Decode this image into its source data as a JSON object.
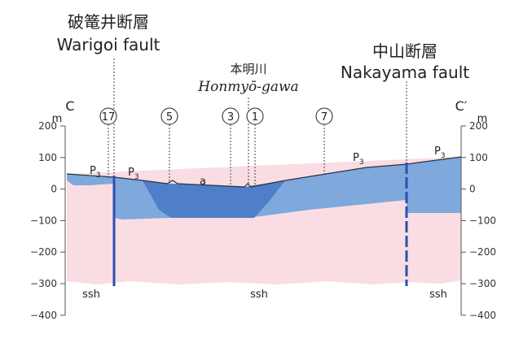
{
  "section": {
    "start_label": "C",
    "end_label": "C′",
    "unit": "m",
    "ticks": [
      "200",
      "100",
      "0",
      "−100",
      "−200",
      "−300",
      "−400"
    ]
  },
  "faults": [
    {
      "name_ja": "破篭井断層",
      "name_en": "Warigoi fault"
    },
    {
      "name_ja": "中山断層",
      "name_en": "Nakayama fault"
    }
  ],
  "river": {
    "name_ja": "本明川",
    "name_en": "Honmyō-gawa"
  },
  "boreholes": [
    "17",
    "5",
    "3",
    "1",
    "7"
  ],
  "units": [
    {
      "symbol": "P",
      "sub": "3"
    },
    {
      "symbol": "P",
      "sub": "3"
    },
    {
      "symbol": "P",
      "sub": "3"
    },
    {
      "symbol": "P",
      "sub": "3"
    }
  ],
  "alluvium": "a",
  "basement": [
    "ssh",
    "ssh",
    "ssh"
  ]
}
